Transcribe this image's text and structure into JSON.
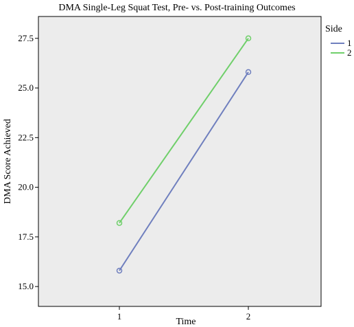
{
  "chart_data": {
    "type": "line",
    "title": "DMA Single-Leg Squat Test, Pre- vs. Post-training Outcomes",
    "xlabel": "Time",
    "ylabel": "DMA Score Achieved",
    "categories": [
      "1",
      "2"
    ],
    "series": [
      {
        "name": "1",
        "color": "#6f7fbe",
        "values": [
          15.8,
          25.8
        ]
      },
      {
        "name": "2",
        "color": "#6fcf6a",
        "values": [
          18.2,
          27.5
        ]
      }
    ],
    "ylim": [
      14.0,
      28.6
    ],
    "yticks": [
      15.0,
      17.5,
      20.0,
      22.5,
      25.0,
      27.5
    ],
    "ytick_labels": [
      "15.0",
      "17.5",
      "20.0",
      "22.5",
      "25.0",
      "27.5"
    ],
    "legend": {
      "title": "Side",
      "placement": "right"
    },
    "grid": false,
    "plot_background": "#ececec",
    "markers": "open-circle"
  }
}
